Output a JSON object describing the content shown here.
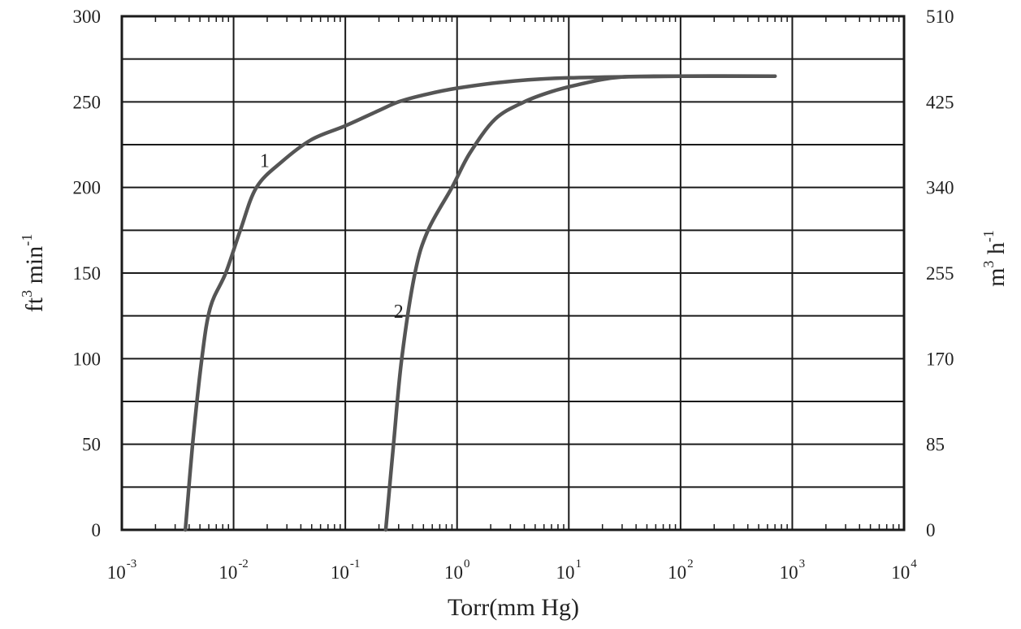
{
  "chart_data": {
    "type": "line",
    "x_scale": "log",
    "xlim": [
      0.001,
      10000
    ],
    "ylim": [
      0,
      300
    ],
    "y2lim": [
      0,
      510
    ],
    "grid": true,
    "xlabel": "Torr(mm Hg)",
    "ylabel": {
      "base": "ft",
      "sup": "3",
      "mid": " min",
      "sup2": "-1"
    },
    "y2label": {
      "base": "m",
      "sup": "3",
      "mid": " h",
      "sup2": "-1"
    },
    "x_ticks": [
      {
        "base": "10",
        "exp": "-3",
        "value": 0.001
      },
      {
        "base": "10",
        "exp": "-2",
        "value": 0.01
      },
      {
        "base": "10",
        "exp": "-1",
        "value": 0.1
      },
      {
        "base": "10",
        "exp": "0",
        "value": 1
      },
      {
        "base": "10",
        "exp": "1",
        "value": 10
      },
      {
        "base": "10",
        "exp": "2",
        "value": 100
      },
      {
        "base": "10",
        "exp": "3",
        "value": 1000
      },
      {
        "base": "10",
        "exp": "4",
        "value": 10000
      }
    ],
    "y_ticks": [
      "0",
      "50",
      "100",
      "150",
      "200",
      "250",
      "300"
    ],
    "y2_ticks": [
      "0",
      "85",
      "170",
      "255",
      "340",
      "425",
      "510"
    ],
    "series": [
      {
        "label": "1",
        "label_at": [
          0.019,
          212
        ],
        "points": [
          [
            0.0037,
            0
          ],
          [
            0.0043,
            50
          ],
          [
            0.0052,
            100
          ],
          [
            0.0062,
            130
          ],
          [
            0.0085,
            150
          ],
          [
            0.0115,
            175
          ],
          [
            0.016,
            200
          ],
          [
            0.027,
            215
          ],
          [
            0.05,
            228
          ],
          [
            0.1,
            236
          ],
          [
            0.2,
            245
          ],
          [
            0.3,
            250
          ],
          [
            0.5,
            254
          ],
          [
            1,
            258
          ],
          [
            3,
            262
          ],
          [
            10,
            264
          ],
          [
            100,
            265
          ],
          [
            700,
            265
          ]
        ]
      },
      {
        "label": "2",
        "label_at": [
          0.3,
          124
        ],
        "points": [
          [
            0.23,
            0
          ],
          [
            0.27,
            50
          ],
          [
            0.32,
            100
          ],
          [
            0.42,
            150
          ],
          [
            0.55,
            175
          ],
          [
            0.9,
            200
          ],
          [
            1.3,
            220
          ],
          [
            2.2,
            240
          ],
          [
            4,
            250
          ],
          [
            7,
            256
          ],
          [
            12,
            260
          ],
          [
            25,
            264
          ],
          [
            60,
            265
          ],
          [
            700,
            265
          ]
        ]
      }
    ]
  }
}
